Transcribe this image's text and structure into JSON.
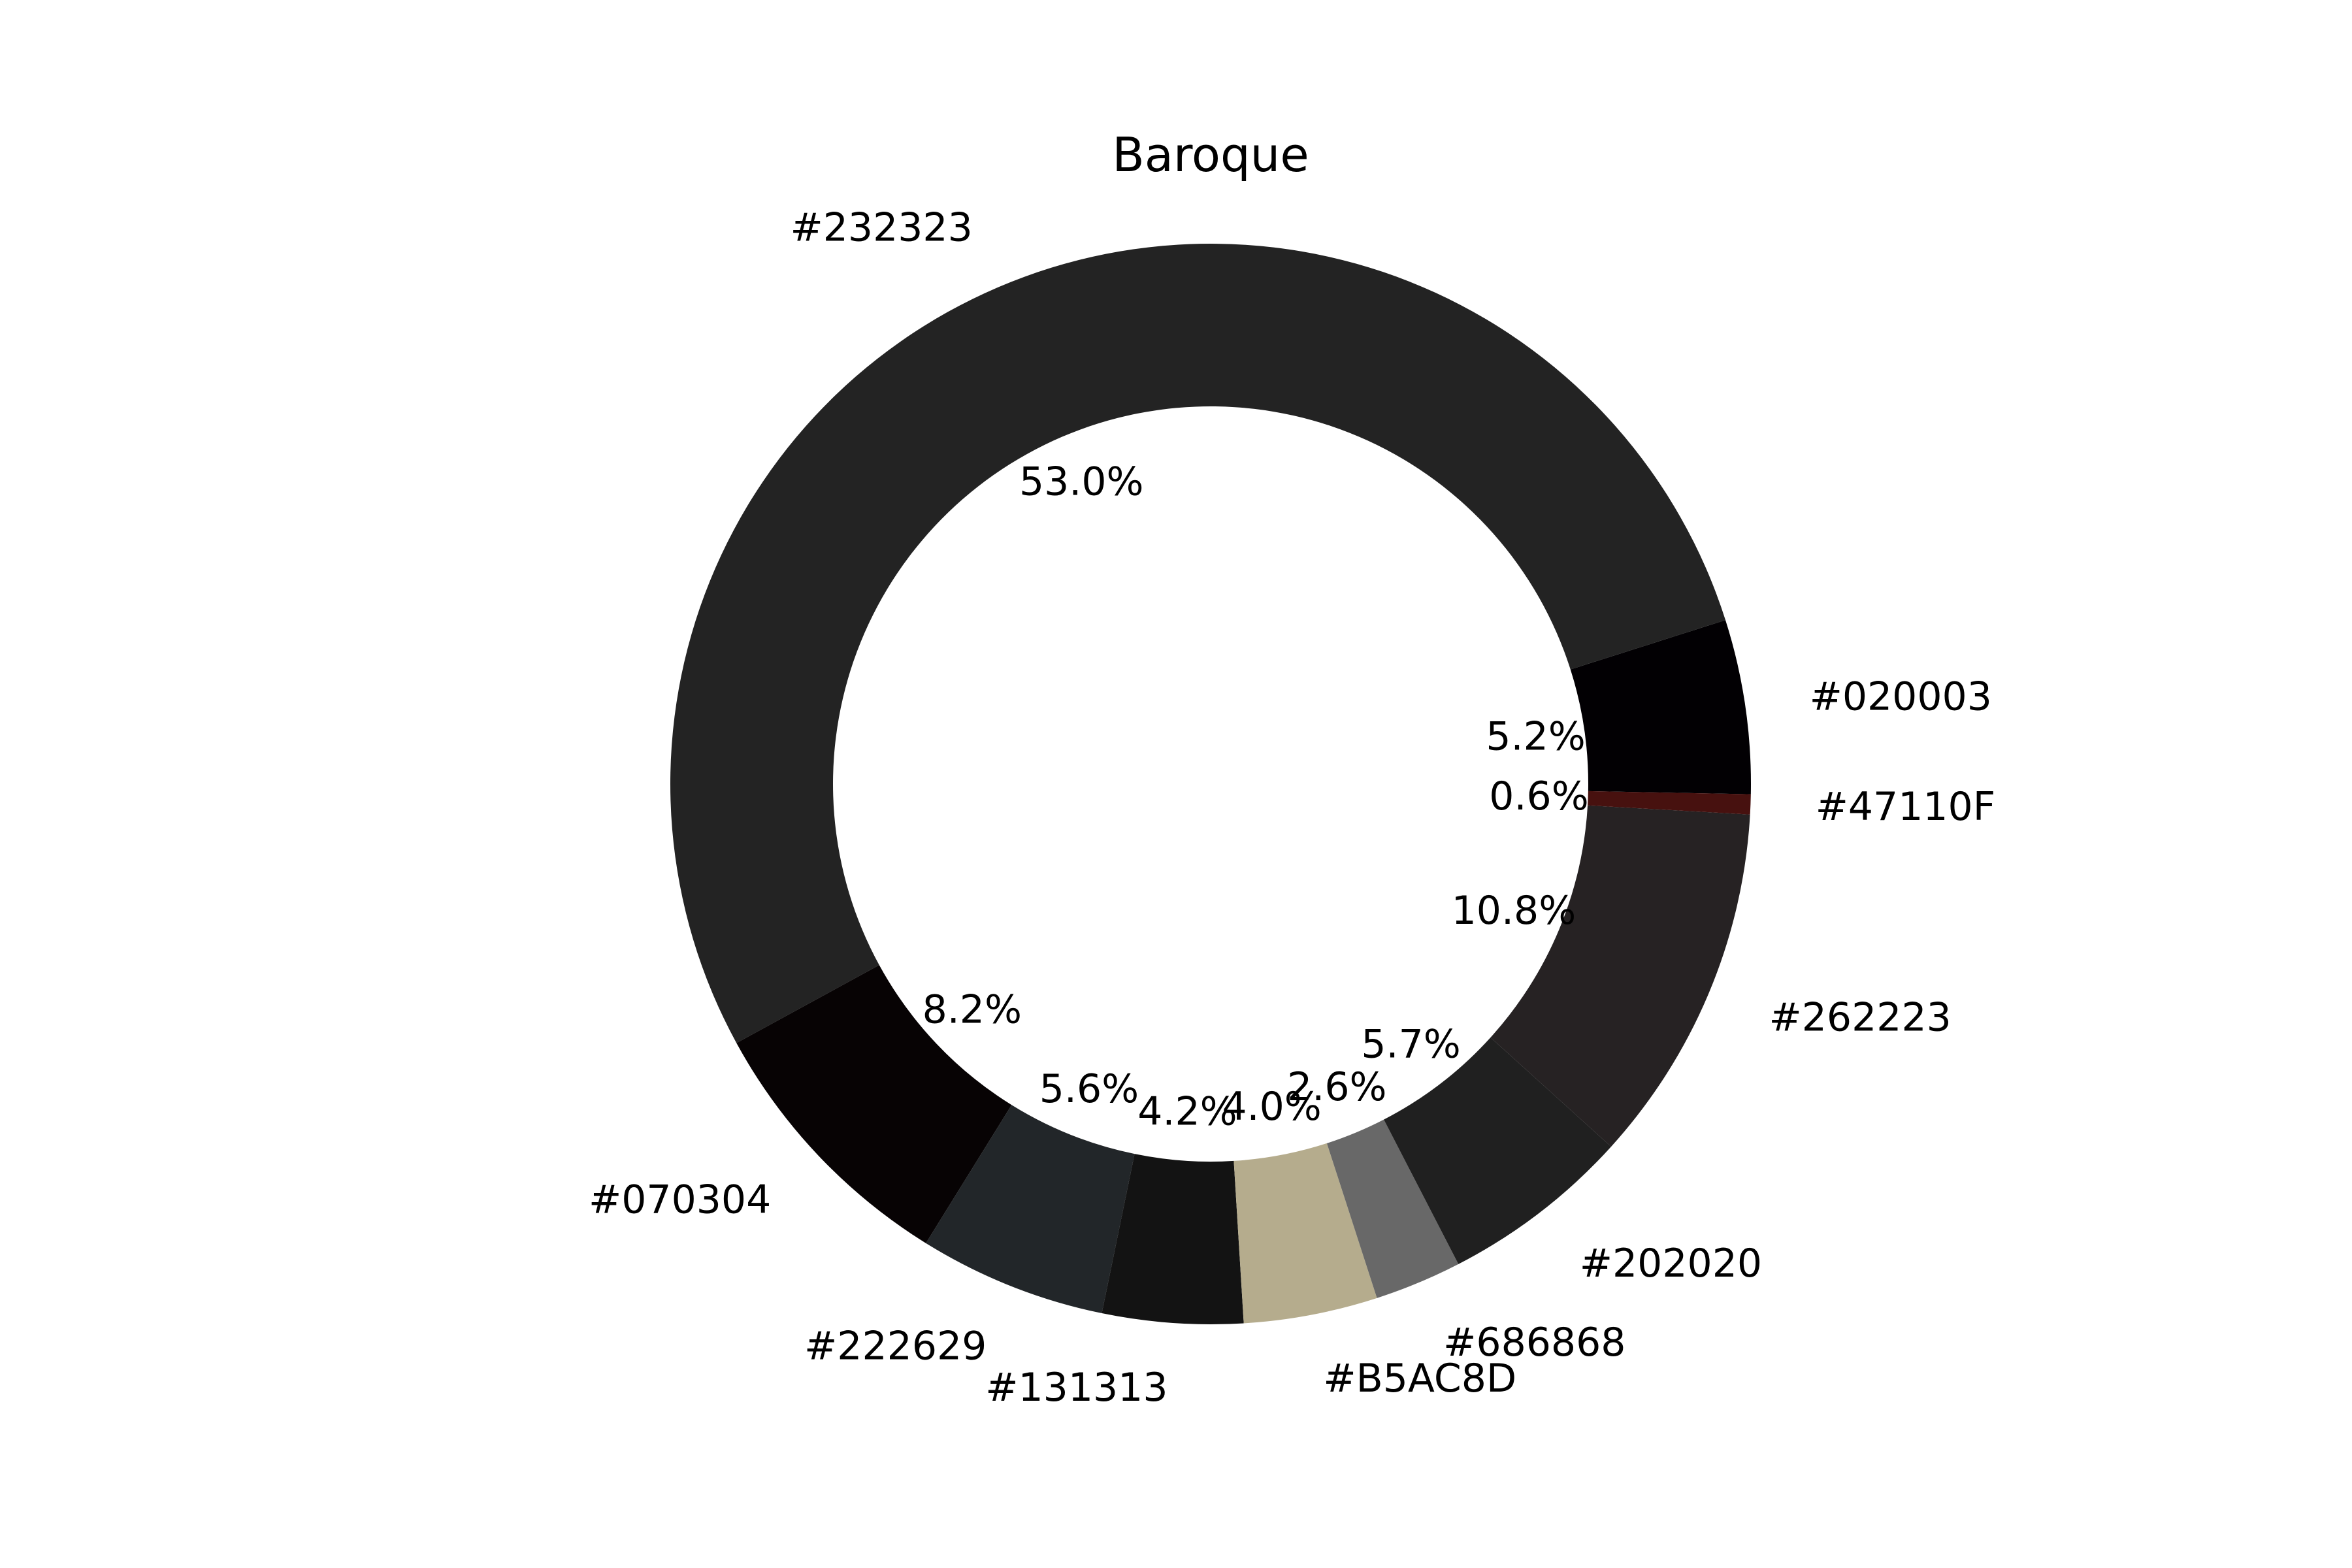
{
  "chart_data": {
    "type": "pie",
    "title": "Baroque",
    "donut": true,
    "start_angle_deg": -1.08,
    "direction": "counterclockwise",
    "slices": [
      {
        "label": "#020003",
        "value": 5.2,
        "color": "#020003",
        "pct_label": "5.2%"
      },
      {
        "label": "#232323",
        "value": 53.0,
        "color": "#232323",
        "pct_label": "53.0%"
      },
      {
        "label": "#070304",
        "value": 8.2,
        "color": "#070304",
        "pct_label": "8.2%"
      },
      {
        "label": "#222629",
        "value": 5.6,
        "color": "#222629",
        "pct_label": "5.6%"
      },
      {
        "label": "#131313",
        "value": 4.2,
        "color": "#131313",
        "pct_label": "4.2%"
      },
      {
        "label": "#B5AC8D",
        "value": 4.0,
        "color": "#B5AC8D",
        "pct_label": "4.0%"
      },
      {
        "label": "#686868",
        "value": 2.6,
        "color": "#686868",
        "pct_label": "2.6%"
      },
      {
        "label": "#202020",
        "value": 5.7,
        "color": "#202020",
        "pct_label": "5.7%"
      },
      {
        "label": "#262223",
        "value": 10.8,
        "color": "#262223",
        "pct_label": "10.8%"
      },
      {
        "label": "#47110F",
        "value": 0.6,
        "color": "#47110F",
        "pct_label": "0.6%"
      }
    ]
  }
}
